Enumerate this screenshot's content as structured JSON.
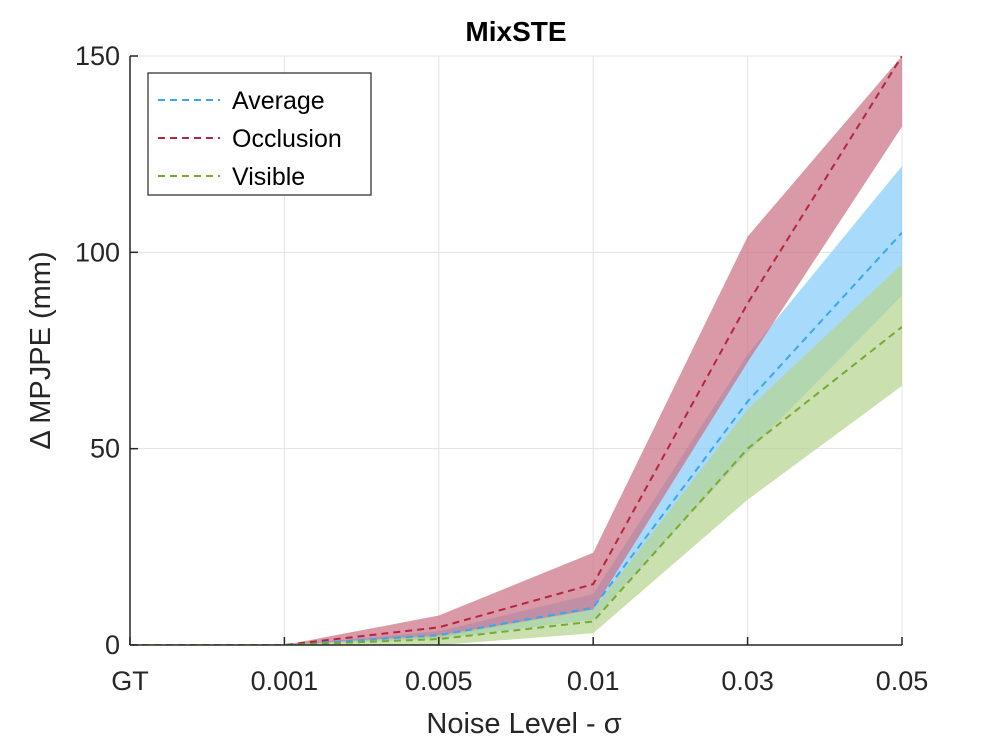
{
  "chart_data": {
    "type": "line",
    "title": "MixSTE",
    "xlabel": "Noise Level - σ",
    "ylabel": "Δ MPJPE (mm)",
    "categories": [
      "GT",
      "0.001",
      "0.005",
      "0.01",
      "0.03",
      "0.05"
    ],
    "ylim": [
      0,
      150
    ],
    "yticks": [
      0,
      50,
      100,
      150
    ],
    "grid": true,
    "legend_position": "top-left",
    "series": [
      {
        "name": "Average",
        "color": "#3aa6ee",
        "band_color": "#86cdf9",
        "values": [
          0,
          0,
          2.5,
          9.5,
          62,
          105
        ],
        "lower": [
          0,
          0,
          1.5,
          6.5,
          49,
          89
        ],
        "upper": [
          0,
          0,
          3.5,
          13,
          74,
          122
        ]
      },
      {
        "name": "Occlusion",
        "color": "#b5253f",
        "band_color": "#ca7284",
        "values": [
          0,
          0,
          4.5,
          15.5,
          87,
          150
        ],
        "lower": [
          0,
          0,
          2,
          9,
          72,
          132
        ],
        "upper": [
          0,
          0,
          7.5,
          23.5,
          104,
          150
        ]
      },
      {
        "name": "Visible",
        "color": "#76aa32",
        "band_color": "#b6d48f",
        "values": [
          0,
          0,
          1.5,
          6,
          50,
          81
        ],
        "lower": [
          0,
          0,
          0,
          3,
          37,
          66
        ],
        "upper": [
          0,
          0,
          2.5,
          9,
          60,
          97
        ]
      }
    ]
  }
}
